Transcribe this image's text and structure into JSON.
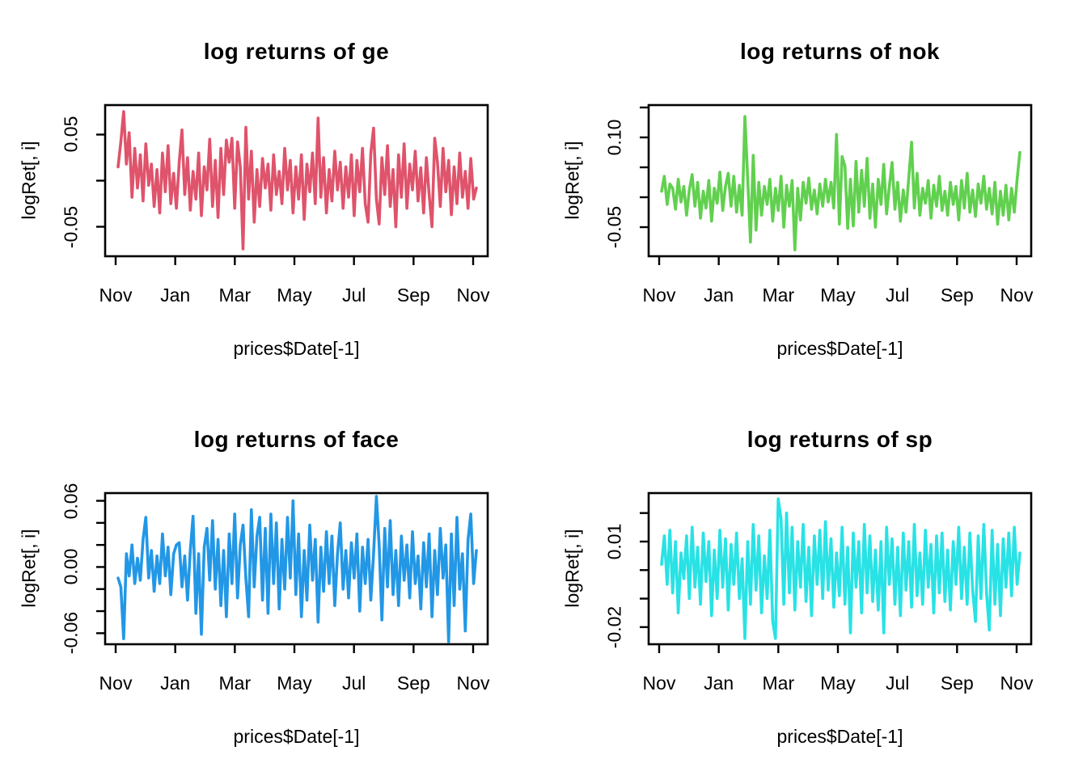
{
  "figure": {
    "background": "#FFFFFF",
    "layout": "2x2",
    "axis_color": "#000000"
  },
  "chart_data": [
    {
      "type": "line",
      "series_name": "ge",
      "title": "log returns of ge",
      "xlabel": "prices$Date[-1]",
      "ylabel": "logRet[, i]",
      "line_color": "#DF536B",
      "x_tick_labels": [
        "Nov",
        "Jan",
        "Mar",
        "May",
        "Jul",
        "Sep",
        "Nov"
      ],
      "ylim": [
        -0.082,
        0.082
      ],
      "grid": false,
      "y_ticks": [
        {
          "value": 0.05,
          "label": "0.05"
        },
        {
          "value": 0.0,
          "label": ""
        },
        {
          "value": -0.05,
          "label": "-0.05"
        }
      ],
      "values": [
        0.015,
        0.042,
        0.075,
        0.018,
        0.052,
        -0.018,
        0.035,
        -0.008,
        0.028,
        -0.022,
        0.04,
        -0.005,
        0.018,
        -0.028,
        0.012,
        -0.035,
        0.03,
        -0.012,
        0.038,
        -0.025,
        0.008,
        -0.03,
        0.02,
        0.055,
        -0.015,
        0.025,
        -0.032,
        0.01,
        -0.02,
        0.03,
        -0.038,
        0.015,
        -0.01,
        0.045,
        -0.028,
        0.022,
        -0.04,
        0.035,
        -0.015,
        0.044,
        0.02,
        0.046,
        -0.03,
        0.042,
        0.015,
        -0.074,
        0.058,
        -0.02,
        0.032,
        -0.045,
        0.012,
        -0.028,
        0.024,
        -0.008,
        0.018,
        -0.032,
        0.028,
        -0.015,
        0.01,
        -0.025,
        0.035,
        -0.01,
        0.022,
        -0.035,
        0.015,
        -0.02,
        0.028,
        -0.042,
        0.018,
        -0.012,
        0.03,
        -0.025,
        0.068,
        -0.018,
        0.025,
        -0.035,
        0.012,
        -0.022,
        0.032,
        -0.01,
        0.02,
        -0.03,
        0.015,
        -0.018,
        0.028,
        -0.038,
        0.022,
        -0.012,
        0.035,
        -0.025,
        -0.045,
        0.03,
        0.057,
        -0.02,
        -0.047,
        0.025,
        -0.015,
        0.038,
        -0.028,
        0.012,
        -0.05,
        0.028,
        -0.018,
        0.04,
        -0.03,
        0.018,
        -0.01,
        0.032,
        -0.022,
        0.014,
        -0.035,
        0.025,
        -0.015,
        -0.05,
        0.046,
        0.02,
        -0.028,
        0.035,
        -0.012,
        0.022,
        -0.037,
        0.015,
        -0.025,
        0.03,
        -0.018,
        0.01,
        -0.03,
        0.024,
        -0.02,
        -0.008
      ]
    },
    {
      "type": "line",
      "series_name": "nok",
      "title": "log returns of nok",
      "xlabel": "prices$Date[-1]",
      "ylabel": "logRet[, i]",
      "line_color": "#61D04F",
      "x_tick_labels": [
        "Nov",
        "Jan",
        "Mar",
        "May",
        "Jul",
        "Sep",
        "Nov"
      ],
      "ylim": [
        -0.0986,
        0.154
      ],
      "grid": false,
      "y_ticks": [
        {
          "value": 0.15,
          "label": ""
        },
        {
          "value": 0.1,
          "label": "0.10"
        },
        {
          "value": 0.05,
          "label": ""
        },
        {
          "value": 0.0,
          "label": ""
        },
        {
          "value": -0.05,
          "label": "-0.05"
        }
      ],
      "values": [
        0.01,
        0.035,
        -0.012,
        0.022,
        0.015,
        -0.02,
        0.03,
        -0.008,
        0.018,
        -0.03,
        0.012,
        0.038,
        -0.015,
        0.025,
        -0.035,
        0.01,
        -0.018,
        0.028,
        -0.04,
        0.015,
        -0.01,
        0.042,
        -0.022,
        0.018,
        0.04,
        -0.015,
        0.035,
        -0.025,
        0.02,
        -0.03,
        0.135,
        0.03,
        -0.075,
        0.07,
        -0.055,
        0.025,
        -0.03,
        0.018,
        -0.012,
        0.03,
        -0.04,
        0.015,
        -0.022,
        0.035,
        -0.05,
        0.02,
        -0.015,
        0.028,
        -0.088,
        0.015,
        -0.038,
        0.025,
        -0.01,
        0.032,
        -0.02,
        0.012,
        -0.028,
        0.022,
        -0.015,
        0.03,
        -0.008,
        0.025,
        -0.018,
        0.105,
        -0.045,
        0.068,
        0.052,
        -0.052,
        0.03,
        -0.048,
        0.06,
        -0.025,
        0.045,
        -0.015,
        0.065,
        -0.035,
        0.022,
        -0.05,
        0.03,
        -0.012,
        0.055,
        -0.028,
        0.018,
        0.058,
        -0.02,
        0.025,
        -0.04,
        0.012,
        -0.025,
        0.032,
        0.092,
        -0.018,
        0.04,
        -0.03,
        0.015,
        -0.01,
        0.028,
        -0.035,
        0.02,
        -0.015,
        0.035,
        -0.022,
        0.01,
        -0.03,
        0.025,
        -0.012,
        0.018,
        -0.038,
        0.028,
        -0.018,
        0.04,
        -0.025,
        0.012,
        -0.032,
        0.022,
        -0.01,
        0.035,
        -0.02,
        0.015,
        -0.028,
        0.025,
        -0.045,
        0.01,
        -0.03,
        0.02,
        -0.038,
        0.015,
        -0.025,
        0.03,
        0.075
      ]
    },
    {
      "type": "line",
      "series_name": "face",
      "title": "log returns of face",
      "xlabel": "prices$Date[-1]",
      "ylabel": "logRet[, i]",
      "line_color": "#2297E6",
      "x_tick_labels": [
        "Nov",
        "Jan",
        "Mar",
        "May",
        "Jul",
        "Sep",
        "Nov"
      ],
      "ylim": [
        -0.07,
        0.067
      ],
      "grid": false,
      "y_ticks": [
        {
          "value": 0.06,
          "label": "0.06"
        },
        {
          "value": 0.04,
          "label": ""
        },
        {
          "value": 0.02,
          "label": ""
        },
        {
          "value": 0.0,
          "label": "0.00"
        },
        {
          "value": -0.02,
          "label": ""
        },
        {
          "value": -0.04,
          "label": ""
        },
        {
          "value": -0.06,
          "label": "-0.06"
        }
      ],
      "values": [
        -0.01,
        -0.018,
        -0.065,
        0.012,
        -0.008,
        0.02,
        -0.015,
        0.008,
        -0.012,
        0.025,
        0.045,
        -0.01,
        0.015,
        -0.022,
        0.01,
        -0.015,
        0.03,
        -0.008,
        0.018,
        -0.025,
        0.012,
        0.02,
        0.022,
        -0.018,
        0.01,
        -0.03,
        0.015,
        0.046,
        -0.042,
        0.012,
        -0.061,
        0.018,
        0.035,
        -0.012,
        0.042,
        -0.02,
        0.025,
        -0.035,
        0.015,
        -0.045,
        0.03,
        -0.015,
        0.048,
        -0.028,
        0.02,
        0.038,
        -0.01,
        -0.045,
        0.052,
        -0.018,
        0.028,
        0.045,
        -0.03,
        0.035,
        -0.042,
        0.048,
        -0.015,
        0.04,
        -0.038,
        0.025,
        -0.02,
        0.045,
        -0.01,
        0.06,
        -0.025,
        0.03,
        -0.045,
        0.015,
        -0.03,
        0.038,
        -0.012,
        0.025,
        -0.05,
        0.018,
        -0.022,
        0.032,
        -0.015,
        0.028,
        -0.035,
        0.012,
        0.04,
        -0.02,
        0.015,
        -0.028,
        0.022,
        -0.01,
        0.03,
        -0.04,
        0.018,
        -0.015,
        0.025,
        -0.03,
        0.012,
        0.064,
        0.02,
        -0.048,
        0.035,
        -0.018,
        0.042,
        -0.025,
        0.015,
        -0.035,
        0.028,
        -0.012,
        0.02,
        -0.028,
        0.032,
        -0.015,
        0.01,
        -0.038,
        0.022,
        -0.018,
        0.03,
        -0.045,
        0.015,
        -0.025,
        0.035,
        -0.01,
        0.02,
        -0.068,
        0.03,
        -0.035,
        0.045,
        -0.02,
        0.012,
        -0.058,
        0.025,
        0.048,
        -0.015,
        0.015
      ]
    },
    {
      "type": "line",
      "series_name": "sp",
      "title": "log returns of sp",
      "xlabel": "prices$Date[-1]",
      "ylabel": "logRet[, i]",
      "line_color": "#28E2E5",
      "x_tick_labels": [
        "Nov",
        "Jan",
        "Mar",
        "May",
        "Jul",
        "Sep",
        "Nov"
      ],
      "ylim": [
        -0.026,
        0.027
      ],
      "grid": false,
      "y_ticks": [
        {
          "value": 0.02,
          "label": ""
        },
        {
          "value": 0.01,
          "label": "0.01"
        },
        {
          "value": 0.0,
          "label": ""
        },
        {
          "value": -0.01,
          "label": ""
        },
        {
          "value": -0.02,
          "label": "-0.02"
        }
      ],
      "values": [
        0.002,
        0.012,
        -0.005,
        0.014,
        -0.008,
        0.01,
        -0.015,
        0.006,
        -0.003,
        0.012,
        -0.01,
        0.015,
        -0.006,
        0.008,
        -0.012,
        0.013,
        -0.004,
        0.01,
        -0.016,
        0.007,
        -0.01,
        0.014,
        -0.006,
        0.011,
        -0.014,
        0.009,
        -0.005,
        0.013,
        -0.01,
        0.004,
        -0.024,
        0.01,
        -0.012,
        0.016,
        -0.007,
        0.012,
        -0.015,
        0.005,
        -0.01,
        0.014,
        -0.018,
        -0.024,
        0.025,
        0.018,
        -0.012,
        0.02,
        -0.008,
        0.015,
        -0.014,
        0.01,
        -0.006,
        0.016,
        -0.011,
        0.008,
        -0.016,
        0.012,
        -0.005,
        0.014,
        -0.01,
        0.017,
        -0.007,
        0.011,
        -0.013,
        0.006,
        -0.009,
        0.015,
        -0.012,
        0.008,
        -0.022,
        0.013,
        -0.006,
        0.01,
        -0.015,
        0.016,
        -0.008,
        0.012,
        -0.011,
        0.007,
        -0.014,
        0.01,
        -0.022,
        0.015,
        -0.005,
        0.011,
        -0.012,
        0.008,
        -0.016,
        0.013,
        -0.007,
        0.01,
        -0.013,
        0.016,
        -0.009,
        0.006,
        -0.012,
        0.014,
        -0.006,
        0.009,
        -0.015,
        0.012,
        -0.008,
        0.013,
        -0.011,
        0.007,
        -0.014,
        0.01,
        -0.005,
        0.015,
        -0.01,
        0.008,
        -0.012,
        0.013,
        -0.007,
        -0.018,
        0.012,
        -0.01,
        0.016,
        -0.008,
        -0.021,
        0.014,
        -0.012,
        0.009,
        -0.016,
        0.011,
        -0.006,
        0.013,
        -0.009,
        0.015,
        -0.005,
        0.006
      ]
    }
  ]
}
